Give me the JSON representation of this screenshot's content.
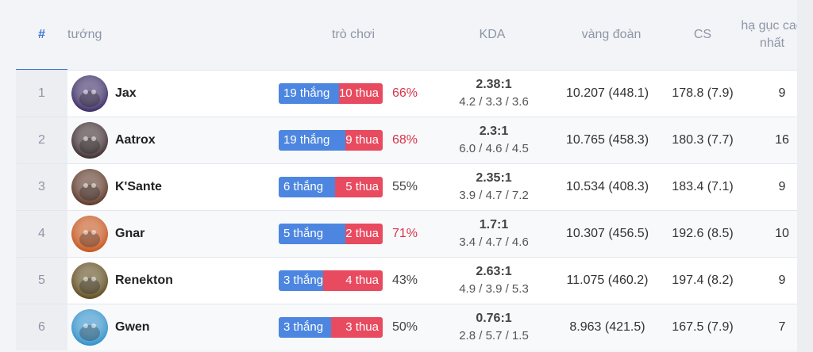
{
  "header": {
    "rank": "#",
    "champion": "tướng",
    "games": "trò chơi",
    "kda": "KDA",
    "gold": "vàng đoàn",
    "cs": "CS",
    "max_kills": "hạ gục cao nhất"
  },
  "rows": [
    {
      "rank": "1",
      "name": "Jax",
      "wins": "19 thắng",
      "losses": "10 thua",
      "win_fraction": 0.655,
      "winrate": "66%",
      "hot": true,
      "kda_ratio": "2.38:1",
      "kda_stats": "4.2 / 3.3  / 3.6",
      "gold": "10.207 (448.1)",
      "cs": "178.8 (7.9)",
      "max_kills": "9",
      "avatar_color": "#3a2a63",
      "avatar_icon": "jax-avatar-icon"
    },
    {
      "rank": "2",
      "name": "Aatrox",
      "wins": "19 thắng",
      "losses": "9 thua",
      "win_fraction": 0.679,
      "winrate": "68%",
      "hot": true,
      "kda_ratio": "2.3:1",
      "kda_stats": "6.0 / 4.6  / 4.5",
      "gold": "10.765 (458.3)",
      "cs": "180.3 (7.7)",
      "max_kills": "16",
      "avatar_color": "#3b2a2e",
      "avatar_icon": "aatrox-avatar-icon"
    },
    {
      "rank": "3",
      "name": "K'Sante",
      "wins": "6 thắng",
      "losses": "5 thua",
      "win_fraction": 0.545,
      "winrate": "55%",
      "hot": false,
      "kda_ratio": "2.35:1",
      "kda_stats": "3.9 / 4.7  / 7.2",
      "gold": "10.534 (408.3)",
      "cs": "183.4 (7.1)",
      "max_kills": "9",
      "avatar_color": "#5a3424",
      "avatar_icon": "ksante-avatar-icon"
    },
    {
      "rank": "4",
      "name": "Gnar",
      "wins": "5 thắng",
      "losses": "2 thua",
      "win_fraction": 0.714,
      "winrate": "71%",
      "hot": true,
      "kda_ratio": "1.7:1",
      "kda_stats": "3.4 / 4.7  / 4.6",
      "gold": "10.307 (456.5)",
      "cs": "192.6 (8.5)",
      "max_kills": "10",
      "avatar_color": "#c4541c",
      "avatar_icon": "gnar-avatar-icon"
    },
    {
      "rank": "5",
      "name": "Renekton",
      "wins": "3 thắng",
      "losses": "4 thua",
      "win_fraction": 0.429,
      "winrate": "43%",
      "hot": false,
      "kda_ratio": "2.63:1",
      "kda_stats": "4.9 / 3.9  / 5.3",
      "gold": "11.075 (460.2)",
      "cs": "197.4 (8.2)",
      "max_kills": "9",
      "avatar_color": "#5d4a1d",
      "avatar_icon": "renekton-avatar-icon"
    },
    {
      "rank": "6",
      "name": "Gwen",
      "wins": "3 thắng",
      "losses": "3 thua",
      "win_fraction": 0.5,
      "winrate": "50%",
      "hot": false,
      "kda_ratio": "0.76:1",
      "kda_stats": "2.8 / 5.7  / 1.5",
      "gold": "8.963 (421.5)",
      "cs": "167.5 (7.9)",
      "max_kills": "7",
      "avatar_color": "#2f8fc9",
      "avatar_icon": "gwen-avatar-icon"
    }
  ]
}
